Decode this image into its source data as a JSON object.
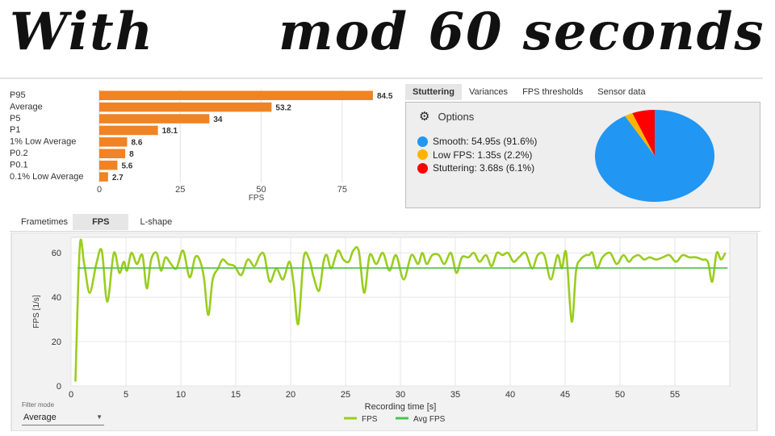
{
  "banner": {
    "left": "With",
    "right": "mod 60 seconds"
  },
  "top_right": {
    "tabs": [
      {
        "label": "Stuttering",
        "active": true
      },
      {
        "label": "Variances",
        "active": false
      },
      {
        "label": "FPS thresholds",
        "active": false
      },
      {
        "label": "Sensor data",
        "active": false
      }
    ],
    "options_label": "Options",
    "options_icon": "gear-icon",
    "legend": [
      {
        "label": "Smooth:  54.95s (91.6%)",
        "color": "#2196f3"
      },
      {
        "label": "Low FPS:  1.35s (2.2%)",
        "color": "#ffb300"
      },
      {
        "label": "Stuttering:  3.68s (6.1%)",
        "color": "#ff0000"
      }
    ]
  },
  "bottom": {
    "tabs": [
      {
        "label": "Frametimes",
        "active": false
      },
      {
        "label": "FPS",
        "active": true
      },
      {
        "label": "L-shape",
        "active": false
      }
    ],
    "filter_mode": {
      "label": "Filter mode",
      "value": "Average",
      "icon": "chevron-down-icon"
    }
  },
  "chart_data": [
    {
      "type": "bar",
      "orientation": "horizontal",
      "categories": [
        "P95",
        "Average",
        "P5",
        "P1",
        "1% Low Average",
        "P0.2",
        "P0.1",
        "0.1% Low Average"
      ],
      "values": [
        84.5,
        53.2,
        34,
        18.1,
        8.6,
        8,
        5.6,
        2.7
      ],
      "data_labels": [
        "84.5",
        "53.2",
        "34",
        "18.1",
        "8.6",
        "8",
        "5.6",
        "2.7"
      ],
      "xlabel": "FPS",
      "xlim": [
        0,
        90
      ],
      "xticks": [
        0,
        25,
        50,
        75
      ],
      "color": "#f08324",
      "grid": true
    },
    {
      "type": "pie",
      "slices": [
        {
          "name": "Smooth",
          "value": 91.6,
          "color": "#2196f3"
        },
        {
          "name": "Low FPS",
          "value": 2.2,
          "color": "#ffb300"
        },
        {
          "name": "Stuttering",
          "value": 6.1,
          "color": "#ff0000"
        }
      ],
      "legend": "left"
    },
    {
      "type": "line",
      "xlabel": "Recording time [s]",
      "ylabel": "FPS [1/s]",
      "xlim": [
        0,
        60
      ],
      "ylim": [
        0,
        67
      ],
      "xticks": [
        0,
        5,
        10,
        15,
        20,
        25,
        30,
        35,
        40,
        45,
        50,
        55
      ],
      "yticks": [
        0,
        20,
        40,
        60
      ],
      "grid": true,
      "legend": "bottom-center",
      "series": [
        {
          "name": "FPS",
          "color": "#9acd1e",
          "x": [
            0.4,
            0.8,
            1.2,
            1.7,
            2.3,
            2.8,
            3.3,
            3.9,
            4.4,
            4.8,
            5.1,
            5.5,
            6.0,
            6.5,
            6.9,
            7.3,
            7.8,
            8.2,
            8.6,
            9.1,
            9.6,
            10.2,
            10.8,
            11.3,
            11.7,
            12.1,
            12.5,
            12.9,
            13.4,
            13.8,
            14.3,
            14.9,
            15.5,
            16.1,
            16.7,
            17.2,
            17.6,
            18.1,
            18.7,
            19.3,
            19.9,
            20.3,
            20.7,
            21.2,
            21.7,
            22.1,
            22.6,
            23.0,
            23.3,
            23.7,
            24.3,
            24.8,
            25.3,
            25.7,
            26.2,
            26.7,
            27.2,
            27.8,
            28.4,
            29.0,
            29.6,
            30.3,
            31.0,
            31.6,
            32.0,
            32.4,
            32.9,
            33.5,
            34.0,
            34.6,
            35.1,
            35.6,
            36.2,
            36.7,
            37.2,
            37.8,
            38.3,
            38.8,
            39.3,
            39.8,
            40.3,
            40.8,
            41.4,
            42.0,
            42.5,
            43.1,
            43.7,
            44.3,
            44.7,
            45.1,
            45.6,
            46.0,
            46.4,
            46.9,
            47.2,
            47.5,
            47.9,
            48.4,
            49.1,
            49.7,
            50.3,
            50.8,
            51.2,
            51.7,
            52.2,
            52.7,
            53.3,
            53.9,
            54.5,
            55.1,
            55.7,
            56.3,
            56.9,
            57.5,
            58.0,
            58.4,
            58.8,
            59.2,
            59.6
          ],
          "y": [
            2,
            63,
            55,
            42,
            55,
            61,
            38,
            60,
            51,
            56,
            52,
            60,
            55,
            59,
            44,
            57,
            60,
            52,
            58,
            55,
            53,
            61,
            49,
            58,
            57,
            49,
            32,
            48,
            53,
            57,
            55,
            54,
            50,
            57,
            54,
            59,
            59,
            47,
            53,
            48,
            56,
            45,
            28,
            58,
            57,
            49,
            43,
            56,
            59,
            53,
            61,
            57,
            56,
            61,
            61,
            42,
            59,
            55,
            60,
            52,
            59,
            48,
            59,
            55,
            60,
            55,
            59,
            59,
            55,
            60,
            51,
            58,
            58,
            60,
            56,
            59,
            54,
            60,
            59,
            60,
            56,
            58,
            60,
            53,
            59,
            59,
            48,
            59,
            53,
            60,
            29,
            52,
            57,
            59,
            59,
            60,
            53,
            58,
            60,
            55,
            59,
            56,
            58,
            59,
            57,
            58,
            57,
            58,
            59,
            56,
            59,
            58,
            58,
            57,
            56,
            47,
            60,
            57,
            60
          ],
          "note_x_sampling": "values read off the curve at the listed recording times"
        },
        {
          "name": "Avg FPS",
          "color": "#4cc24c",
          "x": [
            0.6,
            59.8
          ],
          "y": [
            53.2,
            53.2
          ]
        }
      ]
    }
  ]
}
